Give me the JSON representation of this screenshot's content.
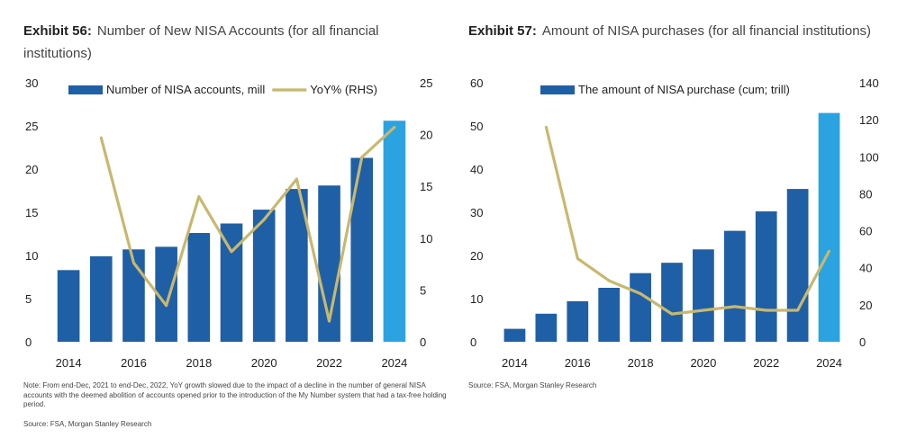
{
  "colors": {
    "bar": "#1f5fa6",
    "bar_highlight": "#2aa3e0",
    "line": "#c8b86e",
    "text": "#222222"
  },
  "exhibit56": {
    "label": "Exhibit 56:",
    "title": "Number of New NISA Accounts (for all financial institutions)",
    "note": "Note: From end-Dec, 2021 to end-Dec, 2022, YoY growth slowed due to the impact of a decline in the number of general NISA accounts with the deemed abolition of accounts opened prior to the introduction of the My Number system that had a tax-free holding period.",
    "source": "Source: FSA, Morgan Stanley Research"
  },
  "exhibit57": {
    "label": "Exhibit 57:",
    "title": "Amount of NISA purchases (for all financial institutions)",
    "source": "Source: FSA, Morgan Stanley Research"
  },
  "chart_data": [
    {
      "type": "bar",
      "categories": [
        "2014",
        "2015",
        "2016",
        "2017",
        "2018",
        "2019",
        "2020",
        "2021",
        "2022",
        "2023",
        "2024"
      ],
      "x_tick_labels": [
        "2014",
        "2016",
        "2018",
        "2020",
        "2022",
        "2024"
      ],
      "ylim": [
        0,
        30
      ],
      "y_ticks": [
        0,
        5,
        10,
        15,
        20,
        25,
        30
      ],
      "y2lim": [
        0,
        25
      ],
      "y2_ticks": [
        0,
        5,
        10,
        15,
        20,
        25
      ],
      "legend_position": "top",
      "series": [
        {
          "name": "Number of NISA accounts, mill",
          "type": "bar",
          "axis": "left",
          "values": [
            8.3,
            9.9,
            10.7,
            11.0,
            12.6,
            13.7,
            15.3,
            17.7,
            18.1,
            21.3,
            25.6
          ]
        },
        {
          "name": "YoY% (RHS)",
          "type": "line",
          "axis": "right",
          "values": [
            null,
            19.7,
            7.6,
            3.5,
            14.0,
            8.7,
            11.8,
            15.7,
            2.0,
            17.8,
            20.7
          ]
        }
      ]
    },
    {
      "type": "bar",
      "categories": [
        "2014",
        "2015",
        "2016",
        "2017",
        "2018",
        "2019",
        "2020",
        "2021",
        "2022",
        "2023",
        "2024"
      ],
      "x_tick_labels": [
        "2014",
        "2016",
        "2018",
        "2020",
        "2022",
        "2024"
      ],
      "ylim": [
        0,
        60
      ],
      "y_ticks": [
        0,
        10,
        20,
        30,
        40,
        50,
        60
      ],
      "y2lim": [
        0,
        140
      ],
      "y2_ticks": [
        0,
        20,
        40,
        60,
        80,
        100,
        120,
        140
      ],
      "legend_position": "top",
      "series": [
        {
          "name": "The amount of NISA purchase (cum; trill)",
          "type": "bar",
          "axis": "left",
          "values": [
            3.0,
            6.5,
            9.4,
            12.5,
            15.9,
            18.3,
            21.4,
            25.7,
            30.2,
            35.4,
            53.0
          ]
        },
        {
          "type": "line",
          "axis": "right",
          "values": [
            null,
            116,
            45,
            33,
            26,
            15,
            17,
            19,
            17,
            17,
            49
          ]
        }
      ]
    }
  ]
}
